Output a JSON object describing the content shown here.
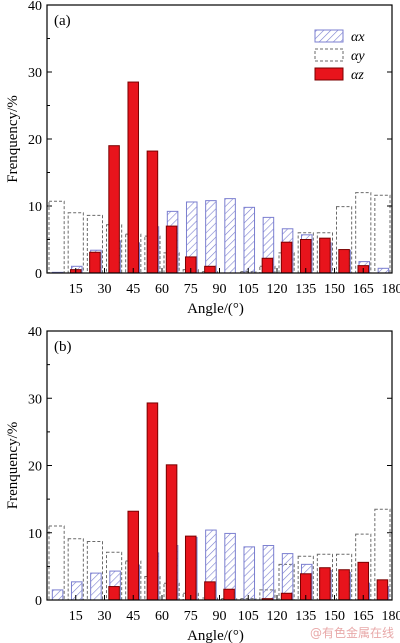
{
  "watermark": "@有色金属在线",
  "colors": {
    "alpha_x_stroke": "#7b7fd0",
    "alpha_y_stroke": "#6a6a6a",
    "alpha_z_fill": "#e8141c",
    "alpha_z_stroke": "#7a0000"
  },
  "chart_data": [
    {
      "type": "bar",
      "panel_label": "(a)",
      "xlabel": "Angle/(°)",
      "ylabel": "Frenquency/%",
      "ylim": [
        0,
        40
      ],
      "yticks": [
        "0",
        "10",
        "20",
        "30",
        "40"
      ],
      "xlim": [
        0,
        180
      ],
      "xticks": [
        "15",
        "30",
        "45",
        "60",
        "75",
        "90",
        "105",
        "120",
        "135",
        "150",
        "165",
        "180"
      ],
      "legend_position": "top-right",
      "categories": [
        5,
        15,
        25,
        35,
        45,
        55,
        65,
        75,
        85,
        95,
        105,
        115,
        125,
        135,
        145,
        155,
        165,
        175
      ],
      "series": [
        {
          "name": "αx",
          "style": "hatched",
          "values": [
            0.1,
            1.0,
            3.4,
            4.8,
            4.5,
            6.9,
            9.2,
            10.6,
            10.8,
            11.1,
            9.8,
            8.3,
            6.6,
            5.7,
            4.5,
            3.4,
            1.7,
            0.7
          ]
        },
        {
          "name": "αy",
          "style": "dashed",
          "values": [
            10.7,
            9.0,
            8.6,
            7.2,
            5.8,
            5.5,
            3.0,
            0.5,
            0.2,
            0.0,
            0.2,
            1.0,
            3.0,
            6.0,
            6.0,
            9.9,
            12.0,
            11.6
          ]
        },
        {
          "name": "αz",
          "style": "filled",
          "values": [
            0.0,
            0.5,
            3.1,
            19.0,
            28.5,
            18.2,
            7.0,
            2.4,
            1.0,
            0.0,
            0.0,
            2.2,
            4.6,
            5.0,
            5.2,
            3.5,
            1.1,
            0.0
          ]
        }
      ]
    },
    {
      "type": "bar",
      "panel_label": "(b)",
      "xlabel": "Angle/(°)",
      "ylabel": "Frenquency/%",
      "ylim": [
        0,
        40
      ],
      "yticks": [
        "0",
        "10",
        "20",
        "30",
        "40"
      ],
      "xlim": [
        0,
        180
      ],
      "xticks": [
        "15",
        "30",
        "45",
        "60",
        "75",
        "90",
        "105",
        "120",
        "135",
        "150",
        "165",
        "180"
      ],
      "categories": [
        5,
        15,
        25,
        35,
        45,
        55,
        65,
        75,
        85,
        95,
        105,
        115,
        125,
        135,
        145,
        155,
        165,
        175
      ],
      "series": [
        {
          "name": "αx",
          "style": "hatched",
          "values": [
            1.5,
            2.7,
            4.0,
            4.3,
            5.2,
            7.0,
            8.1,
            9.3,
            10.4,
            9.9,
            7.9,
            8.1,
            6.9,
            5.3,
            4.4,
            4.1,
            2.5,
            2.0
          ]
        },
        {
          "name": "αy",
          "style": "dashed",
          "values": [
            11.0,
            9.1,
            8.7,
            7.1,
            5.8,
            3.5,
            2.5,
            1.0,
            0.3,
            0.2,
            0.2,
            1.5,
            5.3,
            6.5,
            6.8,
            6.8,
            9.8,
            13.5
          ]
        },
        {
          "name": "αz",
          "style": "filled",
          "values": [
            0.0,
            0.0,
            0.0,
            2.0,
            13.2,
            29.3,
            20.1,
            9.5,
            2.7,
            1.6,
            0.0,
            0.2,
            1.0,
            3.9,
            4.8,
            4.5,
            5.6,
            3.0
          ]
        }
      ]
    }
  ]
}
